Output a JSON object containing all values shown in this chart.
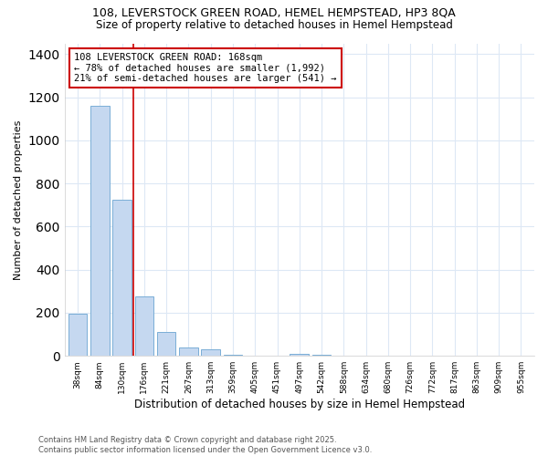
{
  "title1": "108, LEVERSTOCK GREEN ROAD, HEMEL HEMPSTEAD, HP3 8QA",
  "title2": "Size of property relative to detached houses in Hemel Hempstead",
  "xlabel": "Distribution of detached houses by size in Hemel Hempstead",
  "ylabel": "Number of detached properties",
  "categories": [
    "38sqm",
    "84sqm",
    "130sqm",
    "176sqm",
    "221sqm",
    "267sqm",
    "313sqm",
    "359sqm",
    "405sqm",
    "451sqm",
    "497sqm",
    "542sqm",
    "588sqm",
    "634sqm",
    "680sqm",
    "726sqm",
    "772sqm",
    "817sqm",
    "863sqm",
    "909sqm",
    "955sqm"
  ],
  "values": [
    195,
    1160,
    725,
    275,
    110,
    40,
    30,
    5,
    0,
    0,
    10,
    5,
    0,
    0,
    0,
    0,
    0,
    0,
    0,
    0,
    0
  ],
  "bar_color": "#c5d8f0",
  "bar_edge_color": "#7aaed6",
  "vline_color": "#cc0000",
  "annotation_text": "108 LEVERSTOCK GREEN ROAD: 168sqm\n← 78% of detached houses are smaller (1,992)\n21% of semi-detached houses are larger (541) →",
  "annotation_box_color": "#ffffff",
  "annotation_box_edge": "#cc0000",
  "ylim": [
    0,
    1450
  ],
  "yticks": [
    0,
    200,
    400,
    600,
    800,
    1000,
    1200,
    1400
  ],
  "footer": "Contains HM Land Registry data © Crown copyright and database right 2025.\nContains public sector information licensed under the Open Government Licence v3.0.",
  "bg_color": "#ffffff",
  "plot_bg_color": "#ffffff",
  "grid_color": "#dde8f5"
}
